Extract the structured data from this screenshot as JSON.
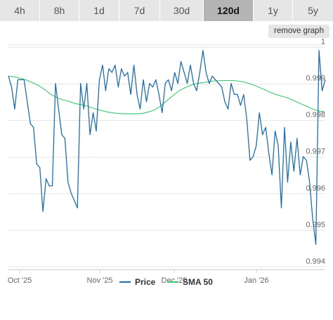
{
  "timeframes": {
    "items": [
      "4h",
      "8h",
      "1d",
      "7d",
      "30d",
      "120d",
      "1y",
      "5y"
    ],
    "active": "120d"
  },
  "remove_graph_label": "remove graph",
  "legend": {
    "price": "Price",
    "sma": "SMA 50"
  },
  "colors": {
    "price": "#1f6fad",
    "sma": "#3ec46d",
    "grid": "#e6e6e6",
    "tab_bg": "#e6e6e6",
    "tab_active_bg": "#b4b4b4"
  },
  "chart_data": {
    "type": "line",
    "title": "",
    "xlabel": "",
    "ylabel": "",
    "x_ticks": [
      "Oct '25",
      "Nov '25",
      "Dec '25",
      "Jan '26"
    ],
    "y_ticks": [
      1,
      0.999,
      0.998,
      0.997,
      0.996,
      0.995,
      0.994
    ],
    "ylim": [
      0.99392,
      1.00005
    ],
    "grid": true,
    "legend_position": "bottom",
    "series": [
      {
        "name": "Price",
        "values": [
          0.9992,
          0.9989,
          0.9983,
          0.9991,
          0.9991,
          0.9991,
          0.9985,
          0.9979,
          0.9978,
          0.9968,
          0.9967,
          0.9955,
          0.9964,
          0.9962,
          0.9962,
          0.999,
          0.9983,
          0.9976,
          0.9975,
          0.9963,
          0.996,
          0.9958,
          0.9956,
          0.999,
          0.9983,
          0.999,
          0.9976,
          0.9982,
          0.9977,
          0.9991,
          0.9995,
          0.9988,
          0.9994,
          0.9993,
          0.9995,
          0.9989,
          0.9994,
          0.9992,
          0.9993,
          0.9987,
          0.9995,
          0.9987,
          0.9983,
          0.9991,
          0.9985,
          0.999,
          0.9989,
          0.9991,
          0.9987,
          0.9982,
          0.999,
          0.9991,
          0.9988,
          0.9993,
          0.999,
          0.9996,
          0.9993,
          0.999,
          0.9995,
          0.999,
          0.9988,
          0.9993,
          0.9999,
          0.9993,
          0.999,
          0.9992,
          0.9991,
          0.999,
          0.9989,
          0.9985,
          0.9983,
          0.999,
          0.9987,
          0.9987,
          0.9984,
          0.9987,
          0.998,
          0.9969,
          0.997,
          0.9973,
          0.9982,
          0.9976,
          0.9978,
          0.9971,
          0.9965,
          0.9977,
          0.9973,
          0.9956,
          0.9978,
          0.9963,
          0.9974,
          0.9966,
          0.9975,
          0.9965,
          0.997,
          0.9969,
          0.9963,
          0.9953,
          0.9946,
          0.9999,
          0.9988,
          0.9991
        ]
      },
      {
        "name": "SMA 50",
        "values": [
          0.9992,
          0.99918,
          0.99914,
          0.99909,
          0.99902,
          0.99894,
          0.99883,
          0.9987,
          0.99861,
          0.99855,
          0.99851,
          0.99845,
          0.99842,
          0.99838,
          0.99832,
          0.99827,
          0.99823,
          0.9982,
          0.99818,
          0.99817,
          0.99817,
          0.99817,
          0.99818,
          0.99822,
          0.99827,
          0.99838,
          0.99852,
          0.99866,
          0.99879,
          0.99888,
          0.99895,
          0.999,
          0.99902,
          0.99905,
          0.99907,
          0.99908,
          0.99908,
          0.99908,
          0.99906,
          0.99903,
          0.99898,
          0.99891,
          0.99884,
          0.99876,
          0.9987,
          0.99865,
          0.9986,
          0.99853,
          0.99845,
          0.99838,
          0.9983,
          0.99825,
          0.99822
        ]
      }
    ]
  }
}
